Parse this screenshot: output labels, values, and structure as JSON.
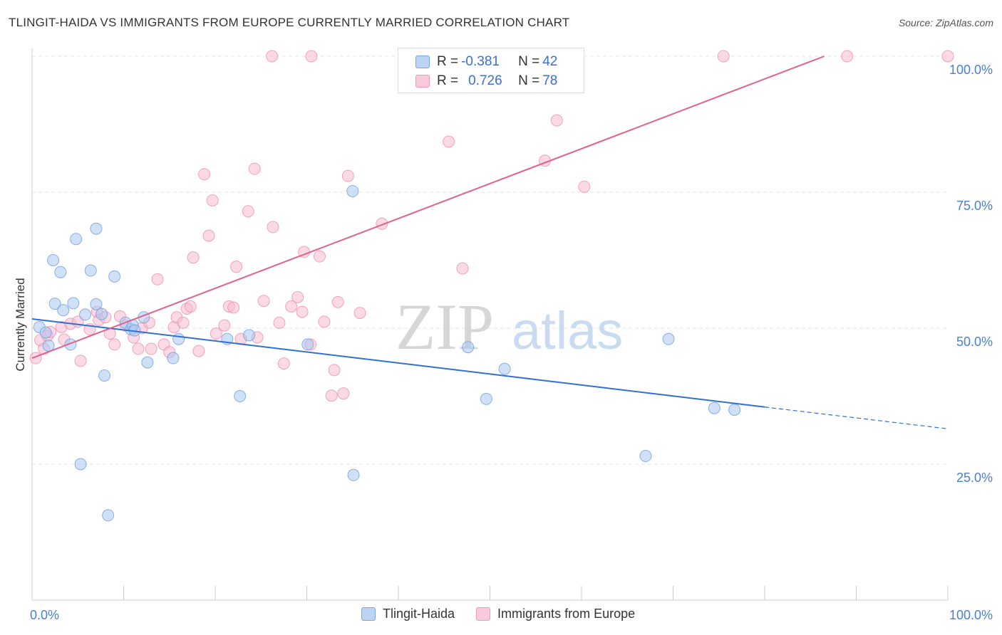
{
  "header": {
    "title": "TLINGIT-HAIDA VS IMMIGRANTS FROM EUROPE CURRENTLY MARRIED CORRELATION CHART",
    "source": "Source: ZipAtlas.com"
  },
  "legend": {
    "rows": [
      {
        "r_label": "R = ",
        "r_value": "-0.381",
        "n_label": "N = ",
        "n_value": "42"
      },
      {
        "r_label": "R = ",
        "r_value": "0.726",
        "n_label": "N = ",
        "n_value": "78"
      }
    ]
  },
  "watermark": {
    "zip": "ZIP",
    "atlas": "atlas"
  },
  "colors": {
    "blue_fill": "#a9c8f0",
    "blue_stroke": "#6e9fe0",
    "blue_line": "#3070d0",
    "pink_fill": "#f7bcd0",
    "pink_stroke": "#ee8fae",
    "pink_line": "#e0608f",
    "axis_text": "#4a7fd4",
    "grid": "#e4e4e4"
  },
  "chart_data": {
    "type": "scatter",
    "title": "TLINGIT-HAIDA VS IMMIGRANTS FROM EUROPE CURRENTLY MARRIED CORRELATION CHART",
    "xlabel": "",
    "ylabel": "Currently Married",
    "xlim": [
      0,
      100
    ],
    "ylim": [
      0,
      100
    ],
    "x_tick_labels": [
      "0.0%",
      "100.0%"
    ],
    "y_ticks": [
      25,
      50,
      75,
      100
    ],
    "y_tick_labels": [
      "25.0%",
      "50.0%",
      "75.0%",
      "100.0%"
    ],
    "grid": true,
    "legend_position": "top-center",
    "series": [
      {
        "name": "Tlingit-Haida",
        "r": -0.381,
        "n": 42,
        "trend": {
          "x0": 0,
          "y0": 51.7,
          "x1": 80,
          "y1": 35.5,
          "dashed_to_x": 100,
          "dashed_to_y": 31.5
        },
        "points": [
          [
            0.8,
            50.2
          ],
          [
            1.5,
            49.2
          ],
          [
            1.8,
            46.8
          ],
          [
            2.3,
            62.5
          ],
          [
            2.5,
            54.5
          ],
          [
            3.1,
            60.3
          ],
          [
            3.4,
            53.3
          ],
          [
            4.2,
            47.0
          ],
          [
            4.5,
            54.6
          ],
          [
            4.8,
            66.4
          ],
          [
            5.3,
            25.0
          ],
          [
            5.8,
            52.5
          ],
          [
            6.4,
            60.6
          ],
          [
            7.0,
            68.3
          ],
          [
            7.0,
            54.4
          ],
          [
            7.6,
            52.6
          ],
          [
            7.9,
            41.3
          ],
          [
            8.3,
            15.6
          ],
          [
            9.0,
            59.5
          ],
          [
            10.2,
            51.0
          ],
          [
            10.8,
            49.8
          ],
          [
            11.0,
            50.5
          ],
          [
            11.2,
            49.6
          ],
          [
            12.2,
            52.0
          ],
          [
            12.6,
            43.7
          ],
          [
            15.4,
            44.5
          ],
          [
            16.0,
            48.0
          ],
          [
            21.3,
            48.0
          ],
          [
            22.7,
            37.5
          ],
          [
            23.7,
            48.7
          ],
          [
            30.1,
            47.0
          ],
          [
            35.0,
            75.2
          ],
          [
            35.1,
            23.0
          ],
          [
            47.6,
            46.5
          ],
          [
            49.6,
            37.0
          ],
          [
            51.6,
            42.5
          ],
          [
            67.0,
            26.5
          ],
          [
            69.5,
            48.0
          ],
          [
            74.5,
            35.3
          ],
          [
            76.7,
            35.0
          ]
        ]
      },
      {
        "name": "Immigrants from Europe",
        "r": 0.726,
        "n": 78,
        "trend": {
          "x0": 0,
          "y0": 44.5,
          "x1": 86.5,
          "y1": 100
        },
        "points": [
          [
            0.4,
            44.5
          ],
          [
            0.9,
            47.8
          ],
          [
            1.3,
            46.2
          ],
          [
            1.7,
            48.6
          ],
          [
            2.0,
            49.3
          ],
          [
            3.2,
            50.2
          ],
          [
            3.5,
            47.9
          ],
          [
            4.2,
            50.8
          ],
          [
            5.0,
            51.2
          ],
          [
            5.3,
            44.0
          ],
          [
            6.3,
            49.8
          ],
          [
            7.1,
            53.0
          ],
          [
            7.3,
            51.5
          ],
          [
            8.0,
            52.0
          ],
          [
            8.5,
            49.0
          ],
          [
            9.0,
            47.0
          ],
          [
            9.6,
            52.2
          ],
          [
            10.2,
            50.5
          ],
          [
            11.1,
            48.3
          ],
          [
            11.6,
            46.2
          ],
          [
            12.0,
            50.0
          ],
          [
            12.8,
            51.0
          ],
          [
            13.0,
            46.2
          ],
          [
            13.7,
            59.0
          ],
          [
            14.4,
            47.0
          ],
          [
            15.0,
            45.6
          ],
          [
            15.5,
            50.2
          ],
          [
            15.8,
            52.0
          ],
          [
            16.5,
            51.0
          ],
          [
            16.9,
            53.6
          ],
          [
            17.3,
            54.0
          ],
          [
            17.6,
            63.0
          ],
          [
            18.2,
            45.8
          ],
          [
            18.8,
            78.3
          ],
          [
            19.3,
            67.0
          ],
          [
            19.7,
            73.5
          ],
          [
            20.1,
            49.0
          ],
          [
            21.0,
            50.5
          ],
          [
            21.5,
            54.0
          ],
          [
            22.0,
            53.8
          ],
          [
            22.3,
            61.3
          ],
          [
            22.8,
            48.0
          ],
          [
            23.6,
            71.5
          ],
          [
            24.3,
            79.3
          ],
          [
            24.6,
            48.3
          ],
          [
            25.3,
            55.0
          ],
          [
            26.3,
            68.6
          ],
          [
            27.0,
            51.0
          ],
          [
            27.5,
            43.5
          ],
          [
            28.3,
            54.0
          ],
          [
            29.0,
            55.7
          ],
          [
            29.5,
            53.0
          ],
          [
            29.7,
            64.0
          ],
          [
            30.4,
            47.0
          ],
          [
            31.4,
            63.2
          ],
          [
            31.9,
            51.2
          ],
          [
            32.7,
            37.6
          ],
          [
            33.0,
            42.3
          ],
          [
            33.4,
            54.8
          ],
          [
            34.0,
            38.0
          ],
          [
            34.5,
            78.0
          ],
          [
            35.8,
            52.8
          ],
          [
            38.2,
            69.2
          ],
          [
            45.5,
            84.3
          ],
          [
            47.0,
            61.0
          ],
          [
            56.0,
            80.8
          ],
          [
            57.3,
            88.2
          ],
          [
            60.3,
            76.0
          ],
          [
            26.2,
            100.0
          ],
          [
            30.5,
            100.0
          ],
          [
            47.0,
            100.0
          ],
          [
            47.5,
            100.0
          ],
          [
            75.5,
            100.0
          ],
          [
            89.0,
            100.0
          ],
          [
            100.0,
            100.0
          ]
        ]
      }
    ]
  },
  "bottom_legend": {
    "items": [
      {
        "label": "Tlingit-Haida"
      },
      {
        "label": "Immigrants from Europe"
      }
    ]
  }
}
